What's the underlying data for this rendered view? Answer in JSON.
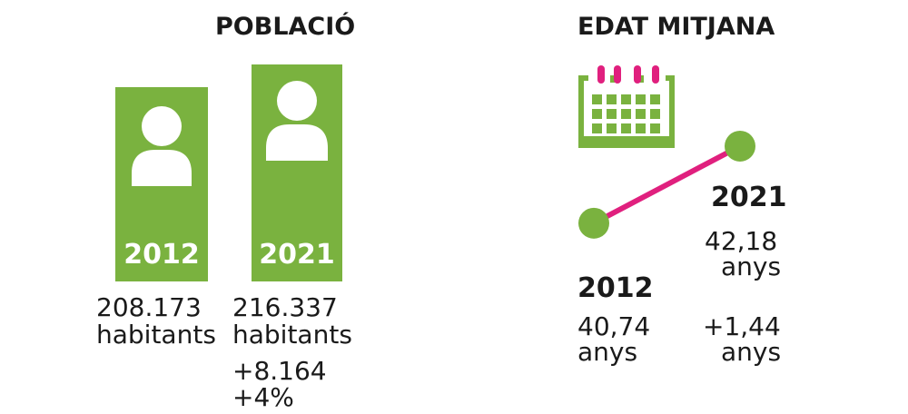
{
  "population": {
    "title": "POBLACIÓ",
    "items": [
      {
        "year": "2012",
        "value": "208.173",
        "unit": "habitants",
        "population": 208173
      },
      {
        "year": "2021",
        "value": "216.337",
        "unit": "habitants",
        "population": 216337
      }
    ],
    "change_abs": "+8.164",
    "change_pct": "+4%"
  },
  "age": {
    "title": "EDAT MITJANA",
    "items": [
      {
        "year": "2012",
        "value": "40,74",
        "unit": "anys",
        "age": 40.74
      },
      {
        "year": "2021",
        "value": "42,18",
        "unit": "anys",
        "age": 42.18
      }
    ],
    "change_value": "+1,44",
    "change_unit": "anys"
  },
  "colors": {
    "green": "#7ab23f",
    "magenta": "#e0207e"
  },
  "chart_data": [
    {
      "type": "bar",
      "title": "POBLACIÓ",
      "categories": [
        "2012",
        "2021"
      ],
      "values": [
        208173,
        216337
      ]
    },
    {
      "type": "line",
      "title": "EDAT MITJANA",
      "x": [
        "2012",
        "2021"
      ],
      "values": [
        40.74,
        42.18
      ]
    }
  ]
}
